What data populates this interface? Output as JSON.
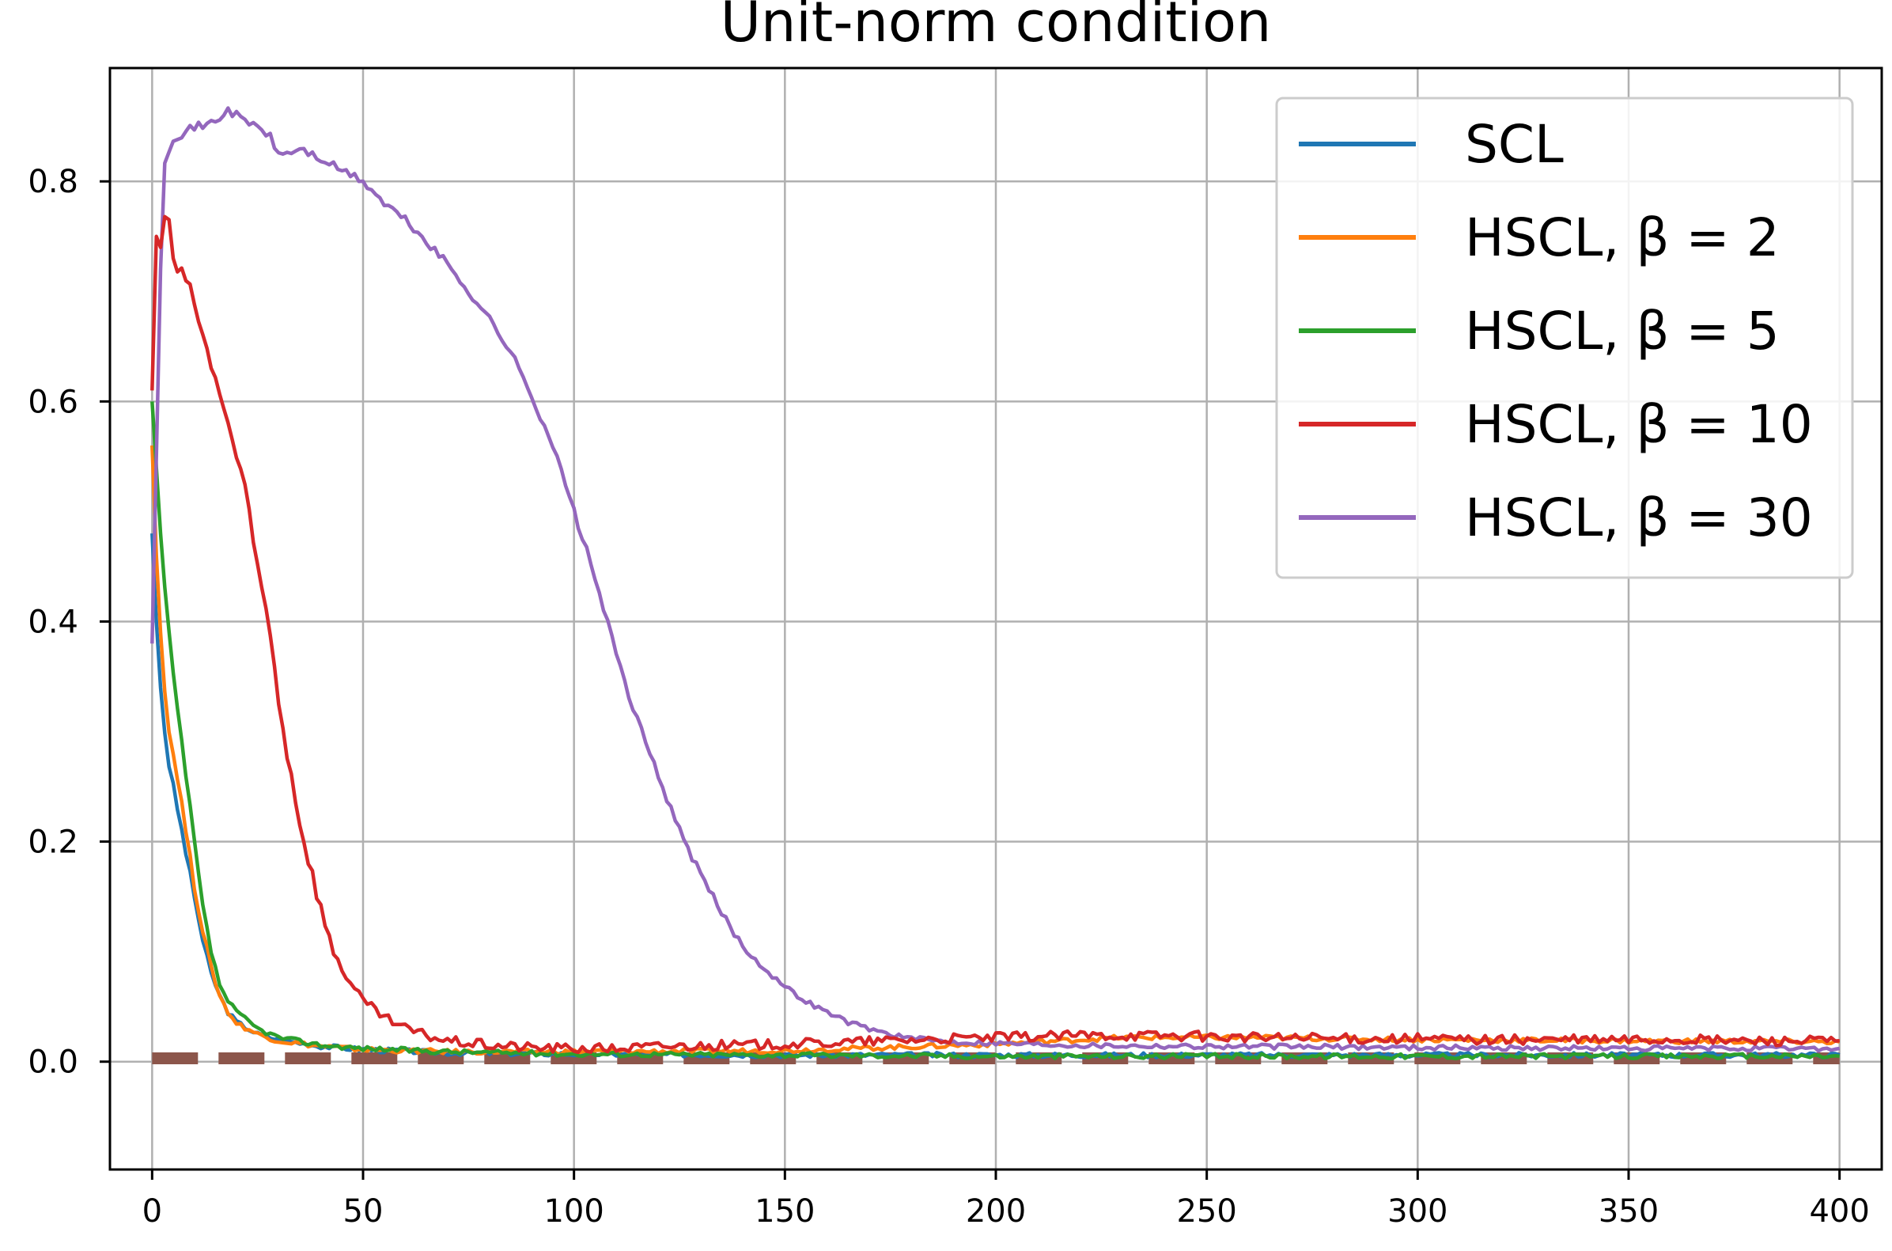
{
  "chart_data": {
    "type": "line",
    "title": "Unit-norm condition",
    "xlabel": "",
    "ylabel": "",
    "xlim": [
      -10,
      410
    ],
    "ylim": [
      -0.098,
      0.903
    ],
    "x_ticks": [
      0,
      50,
      100,
      150,
      200,
      250,
      300,
      350,
      400
    ],
    "x_tick_labels": [
      "0",
      "50",
      "100",
      "150",
      "200",
      "250",
      "300",
      "350",
      "400"
    ],
    "y_ticks": [
      0.0,
      0.2,
      0.4,
      0.6,
      0.8
    ],
    "y_tick_labels": [
      "0.0",
      "0.2",
      "0.4",
      "0.6",
      "0.8"
    ],
    "grid": true,
    "legend_position": "top-right",
    "series": [
      {
        "name": "SCL",
        "color": "#1f77b4",
        "points": [
          [
            0,
            0.48
          ],
          [
            1,
            0.4
          ],
          [
            2,
            0.34
          ],
          [
            3,
            0.3
          ],
          [
            4,
            0.27
          ],
          [
            6,
            0.23
          ],
          [
            8,
            0.19
          ],
          [
            10,
            0.15
          ],
          [
            12,
            0.11
          ],
          [
            14,
            0.08
          ],
          [
            16,
            0.06
          ],
          [
            18,
            0.045
          ],
          [
            20,
            0.036
          ],
          [
            25,
            0.025
          ],
          [
            30,
            0.02
          ],
          [
            40,
            0.014
          ],
          [
            50,
            0.011
          ],
          [
            70,
            0.008
          ],
          [
            100,
            0.007
          ],
          [
            150,
            0.006
          ],
          [
            200,
            0.006
          ],
          [
            250,
            0.006
          ],
          [
            300,
            0.006
          ],
          [
            350,
            0.006
          ],
          [
            400,
            0.006
          ]
        ]
      },
      {
        "name": "HSCL, β = 2",
        "color": "#ff7f0e",
        "points": [
          [
            0,
            0.56
          ],
          [
            1,
            0.46
          ],
          [
            2,
            0.39
          ],
          [
            3,
            0.34
          ],
          [
            4,
            0.3
          ],
          [
            6,
            0.26
          ],
          [
            8,
            0.21
          ],
          [
            10,
            0.16
          ],
          [
            12,
            0.12
          ],
          [
            14,
            0.085
          ],
          [
            16,
            0.06
          ],
          [
            18,
            0.045
          ],
          [
            20,
            0.035
          ],
          [
            25,
            0.025
          ],
          [
            30,
            0.019
          ],
          [
            40,
            0.014
          ],
          [
            50,
            0.011
          ],
          [
            70,
            0.009
          ],
          [
            100,
            0.009
          ],
          [
            150,
            0.01
          ],
          [
            200,
            0.016
          ],
          [
            230,
            0.022
          ],
          [
            260,
            0.022
          ],
          [
            300,
            0.02
          ],
          [
            350,
            0.019
          ],
          [
            400,
            0.018
          ]
        ]
      },
      {
        "name": "HSCL, β = 5",
        "color": "#2ca02c",
        "points": [
          [
            0,
            0.6
          ],
          [
            1,
            0.54
          ],
          [
            2,
            0.48
          ],
          [
            3,
            0.43
          ],
          [
            4,
            0.39
          ],
          [
            5,
            0.35
          ],
          [
            6,
            0.32
          ],
          [
            8,
            0.26
          ],
          [
            10,
            0.2
          ],
          [
            12,
            0.14
          ],
          [
            14,
            0.1
          ],
          [
            16,
            0.07
          ],
          [
            18,
            0.055
          ],
          [
            20,
            0.045
          ],
          [
            25,
            0.03
          ],
          [
            30,
            0.022
          ],
          [
            40,
            0.015
          ],
          [
            50,
            0.012
          ],
          [
            70,
            0.009
          ],
          [
            100,
            0.007
          ],
          [
            150,
            0.006
          ],
          [
            200,
            0.005
          ],
          [
            250,
            0.005
          ],
          [
            300,
            0.005
          ],
          [
            350,
            0.005
          ],
          [
            400,
            0.005
          ]
        ]
      },
      {
        "name": "HSCL, β = 10",
        "color": "#d62728",
        "points": [
          [
            0,
            0.61
          ],
          [
            1,
            0.75
          ],
          [
            2,
            0.74
          ],
          [
            3,
            0.77
          ],
          [
            4,
            0.76
          ],
          [
            5,
            0.73
          ],
          [
            6,
            0.72
          ],
          [
            8,
            0.71
          ],
          [
            10,
            0.69
          ],
          [
            12,
            0.66
          ],
          [
            14,
            0.63
          ],
          [
            16,
            0.61
          ],
          [
            18,
            0.58
          ],
          [
            20,
            0.55
          ],
          [
            22,
            0.52
          ],
          [
            24,
            0.47
          ],
          [
            26,
            0.43
          ],
          [
            28,
            0.39
          ],
          [
            30,
            0.33
          ],
          [
            32,
            0.28
          ],
          [
            34,
            0.24
          ],
          [
            36,
            0.2
          ],
          [
            38,
            0.17
          ],
          [
            40,
            0.14
          ],
          [
            42,
            0.11
          ],
          [
            45,
            0.085
          ],
          [
            48,
            0.065
          ],
          [
            50,
            0.055
          ],
          [
            55,
            0.04
          ],
          [
            60,
            0.03
          ],
          [
            65,
            0.024
          ],
          [
            70,
            0.019
          ],
          [
            80,
            0.015
          ],
          [
            90,
            0.013
          ],
          [
            100,
            0.012
          ],
          [
            110,
            0.012
          ],
          [
            120,
            0.014
          ],
          [
            140,
            0.015
          ],
          [
            160,
            0.017
          ],
          [
            180,
            0.02
          ],
          [
            200,
            0.022
          ],
          [
            220,
            0.024
          ],
          [
            240,
            0.024
          ],
          [
            260,
            0.022
          ],
          [
            280,
            0.021
          ],
          [
            300,
            0.021
          ],
          [
            320,
            0.02
          ],
          [
            340,
            0.02
          ],
          [
            360,
            0.02
          ],
          [
            380,
            0.019
          ],
          [
            400,
            0.019
          ]
        ]
      },
      {
        "name": "HSCL, β = 30",
        "color": "#9467bd",
        "points": [
          [
            0,
            0.38
          ],
          [
            1,
            0.55
          ],
          [
            2,
            0.72
          ],
          [
            3,
            0.82
          ],
          [
            5,
            0.84
          ],
          [
            8,
            0.845
          ],
          [
            10,
            0.85
          ],
          [
            12,
            0.85
          ],
          [
            15,
            0.855
          ],
          [
            18,
            0.865
          ],
          [
            20,
            0.86
          ],
          [
            22,
            0.855
          ],
          [
            25,
            0.85
          ],
          [
            28,
            0.84
          ],
          [
            30,
            0.825
          ],
          [
            32,
            0.825
          ],
          [
            35,
            0.83
          ],
          [
            40,
            0.82
          ],
          [
            45,
            0.81
          ],
          [
            50,
            0.8
          ],
          [
            55,
            0.78
          ],
          [
            60,
            0.765
          ],
          [
            65,
            0.745
          ],
          [
            70,
            0.725
          ],
          [
            75,
            0.7
          ],
          [
            80,
            0.675
          ],
          [
            85,
            0.645
          ],
          [
            90,
            0.605
          ],
          [
            95,
            0.56
          ],
          [
            100,
            0.5
          ],
          [
            105,
            0.44
          ],
          [
            110,
            0.37
          ],
          [
            115,
            0.31
          ],
          [
            120,
            0.26
          ],
          [
            125,
            0.21
          ],
          [
            130,
            0.17
          ],
          [
            135,
            0.135
          ],
          [
            140,
            0.105
          ],
          [
            145,
            0.085
          ],
          [
            150,
            0.068
          ],
          [
            155,
            0.055
          ],
          [
            160,
            0.045
          ],
          [
            165,
            0.036
          ],
          [
            170,
            0.03
          ],
          [
            175,
            0.025
          ],
          [
            180,
            0.021
          ],
          [
            190,
            0.018
          ],
          [
            200,
            0.017
          ],
          [
            220,
            0.015
          ],
          [
            250,
            0.014
          ],
          [
            300,
            0.013
          ],
          [
            350,
            0.012
          ],
          [
            400,
            0.012
          ]
        ]
      },
      {
        "name": "",
        "color": "#8c564b",
        "style": "dashed",
        "points": [
          [
            0,
            0.003
          ],
          [
            400,
            0.003
          ]
        ]
      }
    ]
  }
}
